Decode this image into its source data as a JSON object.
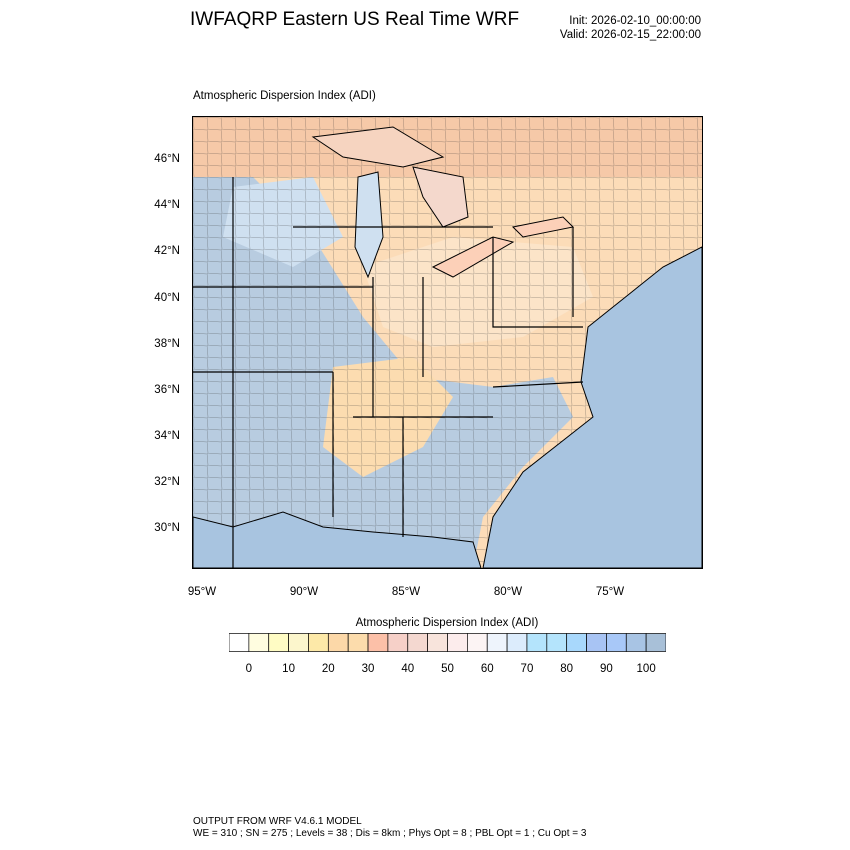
{
  "header": {
    "title": "IWFAQRP Eastern US Real Time WRF",
    "init": "Init: 2026-02-10_00:00:00",
    "valid": "Valid: 2026-02-15_22:00:00"
  },
  "map": {
    "title": "Atmospheric Dispersion Index   (ADI)",
    "lat_labels": [
      "46°N",
      "44°N",
      "42°N",
      "40°N",
      "38°N",
      "36°N",
      "34°N",
      "32°N",
      "30°N"
    ],
    "lon_labels": [
      "95°W",
      "90°W",
      "85°W",
      "80°W",
      "75°W"
    ],
    "colors": {
      "ocean": "#a8c4e0",
      "high_adi": "#a8c0d8",
      "low_adi": "#fcd8a8",
      "mid_adi": "#f8e4dc",
      "boundary": "#000000"
    }
  },
  "colorbar": {
    "title": "Atmospheric Dispersion Index  (ADI)",
    "labels": [
      "0",
      "10",
      "20",
      "30",
      "40",
      "50",
      "60",
      "70",
      "80",
      "90",
      "100"
    ],
    "colors": [
      "#ffffff",
      "#fffde0",
      "#fffcc4",
      "#fcf6cc",
      "#fde9a8",
      "#fcd8a8",
      "#fcdcac",
      "#fcc0a8",
      "#f6d0c8",
      "#f4d8d0",
      "#f8e4dc",
      "#fcecec",
      "#fcf4f4",
      "#eef4fc",
      "#dcecfc",
      "#b4e4fc",
      "#b4e4fc",
      "#a8d8fc",
      "#a8c4f4",
      "#a8c8f8",
      "#a8c4e4",
      "#a8c0d8"
    ]
  },
  "footer": {
    "line1": "OUTPUT FROM WRF V4.6.1 MODEL",
    "line2": "WE = 310 ; SN = 275 ; Levels = 38 ; Dis = 8km ; Phys Opt = 8 ; PBL Opt = 1 ; Cu Opt = 3"
  }
}
